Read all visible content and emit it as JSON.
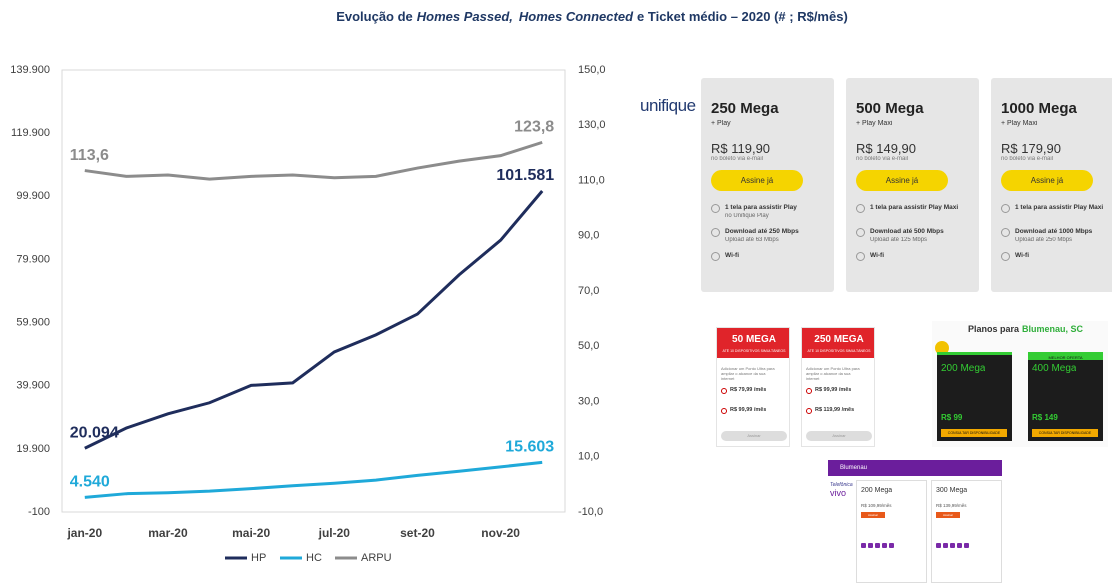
{
  "chart_data": {
    "type": "line",
    "title_parts": [
      "Evolução de",
      "Homes Passed,",
      "Homes Connected",
      "e Ticket médio – 2020 (# ; R$/mês)"
    ],
    "categories": [
      "jan-20",
      null,
      "mar-20",
      null,
      "mai-20",
      null,
      "jul-20",
      null,
      "set-20",
      null,
      "nov-20",
      null
    ],
    "ylim": [
      -100,
      139900
    ],
    "yticks": [
      -100,
      {
        "value": 19900,
        "label": "19.900"
      },
      {
        "value": 39900,
        "label": "39.900"
      },
      {
        "value": 59900,
        "label": "59.900"
      },
      {
        "value": 79900,
        "label": "79.900"
      },
      {
        "value": 99900,
        "label": "99.900"
      },
      {
        "value": 119900,
        "label": "119.900"
      },
      {
        "value": 139900,
        "label": "139.900"
      }
    ],
    "y2lim": [
      -10,
      150
    ],
    "y2ticks": [
      {
        "value": -10,
        "label": "-10,0"
      },
      {
        "value": 10,
        "label": "10,0"
      },
      {
        "value": 30,
        "label": "30,0"
      },
      {
        "value": 50,
        "label": "50,0"
      },
      {
        "value": 70,
        "label": "70,0"
      },
      {
        "value": 90,
        "label": "90,0"
      },
      {
        "value": 110,
        "label": "110,0"
      },
      {
        "value": 130,
        "label": "130,0"
      },
      {
        "value": 150,
        "label": "150,0"
      }
    ],
    "grid": false,
    "legend": "bottom",
    "series": [
      {
        "name": "HP",
        "color": "#1f2d5c",
        "values": [
          20094,
          26500,
          31000,
          34500,
          40000,
          40800,
          50600,
          56000,
          62600,
          75000,
          86000,
          101581
        ],
        "value_labels": [
          "20.094",
          null,
          null,
          null,
          null,
          null,
          null,
          null,
          null,
          null,
          null,
          "101.581"
        ]
      },
      {
        "name": "HC",
        "color": "#1fa9d9",
        "values": [
          4540,
          5700,
          6000,
          6500,
          7300,
          8200,
          9000,
          10000,
          11500,
          12800,
          14200,
          15603
        ],
        "value_labels": [
          "4.540",
          null,
          null,
          null,
          null,
          null,
          null,
          null,
          null,
          null,
          null,
          "15.603"
        ]
      },
      {
        "name": "ARPU",
        "color": "#8c8c8c",
        "axis": "y2",
        "values": [
          113.6,
          111.5,
          112,
          110.5,
          111.5,
          112,
          111,
          111.5,
          114.5,
          117,
          119,
          123.8
        ],
        "value_labels": [
          "113,6",
          null,
          null,
          null,
          null,
          null,
          null,
          null,
          null,
          null,
          null,
          "123,8"
        ]
      }
    ]
  },
  "unifique": {
    "logo": "unifique",
    "plans": [
      {
        "name": "250 Mega",
        "sub": "+ Play",
        "price": "R$ 119,90",
        "note": "no boleto via e-mail",
        "button": "Assine já",
        "features": [
          {
            "title": "1 tela para assistir Play",
            "detail": "no Unifique Play"
          },
          {
            "title": "Download até 250 Mbps",
            "detail": "Upload até 63 Mbps"
          },
          {
            "title": "Wi-fi"
          }
        ]
      },
      {
        "name": "500 Mega",
        "sub": "+ Play Maxi",
        "price": "R$ 149,90",
        "note": "no boleto via e-mail",
        "button": "Assine já",
        "features": [
          {
            "title": "1 tela para assistir Play Maxi"
          },
          {
            "title": "Download até 500 Mbps",
            "detail": "Upload até 125 Mbps"
          },
          {
            "title": "Wi-fi"
          }
        ]
      },
      {
        "name": "1000 Mega",
        "sub": "+ Play Maxi",
        "price": "R$ 179,90",
        "note": "no boleto via e-mail",
        "button": "Assine já",
        "features": [
          {
            "title": "1 tela para assistir Play Maxi"
          },
          {
            "title": "Download até 1000 Mbps",
            "detail": "Upload até 250 Mbps"
          },
          {
            "title": "Wi-fi"
          }
        ]
      }
    ]
  },
  "red_offer": {
    "cards": [
      {
        "name": "50 MEGA",
        "sub": "ATÉ 10 DISPOSITIVOS SIMULTÂNEOS",
        "intro": "Adicionar um Ponto Ultra para ampliar o alcance da sua internet",
        "options": [
          "R$ 79,99 /mês",
          "R$ 99,99 /mês"
        ],
        "button": "Assinar"
      },
      {
        "name": "250 MEGA",
        "sub": "ATÉ 10 DISPOSITIVOS SIMULTÂNEOS",
        "intro": "Adicionar um Ponto Ultra para ampliar o alcance da sua internet",
        "options": [
          "R$ 99,99 /mês",
          "R$ 119,99 /mês"
        ],
        "button": "Assinar"
      }
    ]
  },
  "green_offer": {
    "title": "Planos para",
    "city": "Blumenau, SC",
    "cards": [
      {
        "name": "200 Mega",
        "price": "R$ 99",
        "button": "CONSULTAR DISPONIBILIDADE"
      },
      {
        "badge": "MELHOR OFERTA",
        "name": "400 Mega",
        "price": "R$ 149",
        "button": "CONSULTAR DISPONIBILIDADE"
      }
    ]
  },
  "vivo_offer": {
    "search": "Blumenau",
    "brand": "Telefônica",
    "logo": "vivo",
    "cards": [
      {
        "name": "200 Mega",
        "price": "R$ 109,99/mês",
        "button": "Assinar"
      },
      {
        "name": "300 Mega",
        "price": "R$ 139,99/mês",
        "button": "Assinar"
      }
    ]
  }
}
